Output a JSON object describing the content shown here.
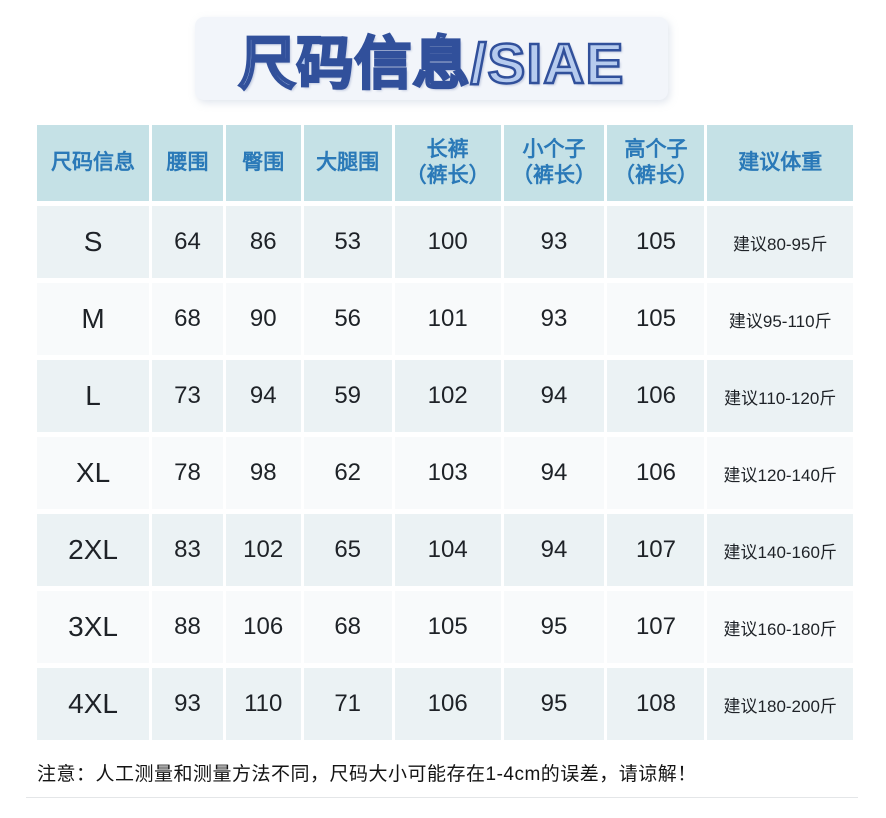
{
  "title_banner": {
    "title": "尺码信息/SIAE"
  },
  "colors": {
    "header_bg": "#c5e1e6",
    "header_text": "#2a79b8",
    "row_odd_bg": "#ebf2f4",
    "row_even_bg": "#f8fafb",
    "banner_bg": "#f2f5fa",
    "title_fill": "#b6cbee",
    "title_outline": "#31509b",
    "body_text": "#1e2227"
  },
  "chart_data": {
    "type": "table",
    "title": "尺码信息/SIAE",
    "columns": [
      "尺码信息",
      "腰围",
      "臀围",
      "大腿围",
      "长裤（裤长）",
      "小个子（裤长）",
      "高个子（裤长）",
      "建议体重"
    ],
    "header_lines": [
      [
        "尺码信息"
      ],
      [
        "腰围"
      ],
      [
        "臀围"
      ],
      [
        "大腿围"
      ],
      [
        "长裤",
        "（裤长）"
      ],
      [
        "小个子",
        "（裤长）"
      ],
      [
        "高个子",
        "（裤长）"
      ],
      [
        "建议体重"
      ]
    ],
    "rows": [
      [
        "S",
        "64",
        "86",
        "53",
        "100",
        "93",
        "105",
        "建议80-95斤"
      ],
      [
        "M",
        "68",
        "90",
        "56",
        "101",
        "93",
        "105",
        "建议95-110斤"
      ],
      [
        "L",
        "73",
        "94",
        "59",
        "102",
        "94",
        "106",
        "建议110-120斤"
      ],
      [
        "XL",
        "78",
        "98",
        "62",
        "103",
        "94",
        "106",
        "建议120-140斤"
      ],
      [
        "2XL",
        "83",
        "102",
        "65",
        "104",
        "94",
        "107",
        "建议140-160斤"
      ],
      [
        "3XL",
        "88",
        "106",
        "68",
        "105",
        "95",
        "107",
        "建议160-180斤"
      ],
      [
        "4XL",
        "93",
        "110",
        "71",
        "106",
        "95",
        "108",
        "建议180-200斤"
      ]
    ],
    "footnote": "注意：人工测量和测量方法不同，尺码大小可能存在1-4cm的误差，请谅解！"
  }
}
